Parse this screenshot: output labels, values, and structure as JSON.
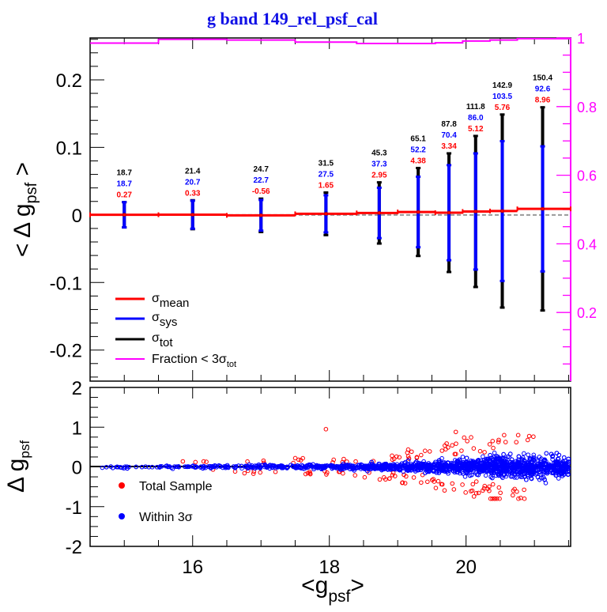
{
  "chart_data": [
    {
      "type": "line",
      "panel": "top",
      "title": "g band 149_rel_psf_cal",
      "xlabel": "<g_psf>",
      "ylabel": "< Δ g_psf >",
      "xlim": [
        14.5,
        21.53
      ],
      "ylim": [
        -0.246,
        0.262
      ],
      "y2lim": [
        0,
        1
      ],
      "x_ticks": [
        16,
        18,
        20
      ],
      "y_ticks": [
        -0.2,
        -0.1,
        0,
        0.1,
        0.2
      ],
      "y_tick_labels": [
        "-0.2",
        "-0.1",
        "0",
        "0.1",
        "0.2"
      ],
      "y2_ticks": [
        0.2,
        0.4,
        0.6,
        0.8,
        1
      ],
      "y2_tick_labels": [
        "0.2",
        "0.4",
        "0.6",
        "0.8",
        "1"
      ],
      "grid": false,
      "legend_position": "bottom-left",
      "legend": [
        {
          "label": "σ",
          "sub": "mean",
          "color": "#ff0000"
        },
        {
          "label": "σ",
          "sub": "sys",
          "color": "#0000ff"
        },
        {
          "label": "σ",
          "sub": "tot",
          "color": "#000000"
        },
        {
          "label": "Fraction < 3σ",
          "sub": "tot",
          "color": "#ff00ff"
        }
      ],
      "bin_edges": [
        14.5,
        15.5,
        16.5,
        17.5,
        18.4,
        19.0,
        19.55,
        19.95,
        20.35,
        20.75,
        21.53
      ],
      "bins": [
        {
          "x": 15.0,
          "mean_mmag": 0.27,
          "sigma_sys_mmag": 18.7,
          "sigma_tot_mmag": 18.7,
          "labels": [
            "18.7",
            "18.7",
            "0.27"
          ]
        },
        {
          "x": 16.0,
          "mean_mmag": 0.33,
          "sigma_sys_mmag": 20.7,
          "sigma_tot_mmag": 21.4,
          "labels": [
            "21.4",
            "20.7",
            "0.33"
          ]
        },
        {
          "x": 17.0,
          "mean_mmag": -0.56,
          "sigma_sys_mmag": 22.7,
          "sigma_tot_mmag": 24.7,
          "labels": [
            "24.7",
            "22.7",
            "-0.56"
          ]
        },
        {
          "x": 17.95,
          "mean_mmag": 1.65,
          "sigma_sys_mmag": 27.5,
          "sigma_tot_mmag": 31.5,
          "labels": [
            "31.5",
            "27.5",
            "1.65"
          ]
        },
        {
          "x": 18.73,
          "mean_mmag": 2.95,
          "sigma_sys_mmag": 37.3,
          "sigma_tot_mmag": 45.3,
          "labels": [
            "45.3",
            "37.3",
            "2.95"
          ]
        },
        {
          "x": 19.3,
          "mean_mmag": 4.38,
          "sigma_sys_mmag": 52.2,
          "sigma_tot_mmag": 65.1,
          "labels": [
            "65.1",
            "52.2",
            "4.38"
          ]
        },
        {
          "x": 19.75,
          "mean_mmag": 3.34,
          "sigma_sys_mmag": 70.4,
          "sigma_tot_mmag": 87.8,
          "labels": [
            "87.8",
            "70.4",
            "3.34"
          ]
        },
        {
          "x": 20.14,
          "mean_mmag": 5.12,
          "sigma_sys_mmag": 86.0,
          "sigma_tot_mmag": 111.8,
          "labels": [
            "111.8",
            "86.0",
            "5.12"
          ]
        },
        {
          "x": 20.53,
          "mean_mmag": 5.76,
          "sigma_sys_mmag": 103.5,
          "sigma_tot_mmag": 142.9,
          "labels": [
            "142.9",
            "103.5",
            "5.76"
          ]
        },
        {
          "x": 21.12,
          "mean_mmag": 8.96,
          "sigma_sys_mmag": 92.6,
          "sigma_tot_mmag": 150.4,
          "labels": [
            "150.4",
            "92.6",
            "8.96"
          ]
        }
      ],
      "fraction_steps": [
        {
          "x0": 14.5,
          "x1": 15.5,
          "y": 0.985
        },
        {
          "x0": 15.5,
          "x1": 16.5,
          "y": 0.996
        },
        {
          "x0": 16.5,
          "x1": 17.5,
          "y": 0.994
        },
        {
          "x0": 17.5,
          "x1": 18.4,
          "y": 0.988
        },
        {
          "x0": 18.4,
          "x1": 19.0,
          "y": 0.984
        },
        {
          "x0": 19.0,
          "x1": 19.55,
          "y": 0.984
        },
        {
          "x0": 19.55,
          "x1": 19.95,
          "y": 0.986
        },
        {
          "x0": 19.95,
          "x1": 20.35,
          "y": 0.991
        },
        {
          "x0": 20.35,
          "x1": 20.75,
          "y": 0.994
        },
        {
          "x0": 20.75,
          "x1": 21.53,
          "y": 0.998
        }
      ]
    },
    {
      "type": "scatter",
      "panel": "bottom",
      "xlabel": "<g_psf>",
      "ylabel": "Δ g_psf",
      "xlim": [
        14.5,
        21.53
      ],
      "ylim": [
        -2,
        2
      ],
      "x_ticks": [
        16,
        18,
        20
      ],
      "x_tick_labels": [
        "16",
        "18",
        "20"
      ],
      "y_ticks": [
        -2,
        -1,
        0,
        1,
        2
      ],
      "y_tick_labels": [
        "-2",
        "-1",
        "0",
        "1",
        "2"
      ],
      "legend_position": "bottom-left",
      "series": [
        {
          "name": "Total Sample",
          "color": "#ff0000"
        },
        {
          "name": "Within 3σ",
          "color": "#0000ff"
        }
      ],
      "notable_points": [
        {
          "x": 17.95,
          "y": 0.95,
          "series": "Total Sample"
        },
        {
          "x": 19.85,
          "y": 0.88,
          "series": "Total Sample"
        },
        {
          "x": 20.8,
          "y": -0.78,
          "series": "Total Sample"
        }
      ]
    }
  ]
}
